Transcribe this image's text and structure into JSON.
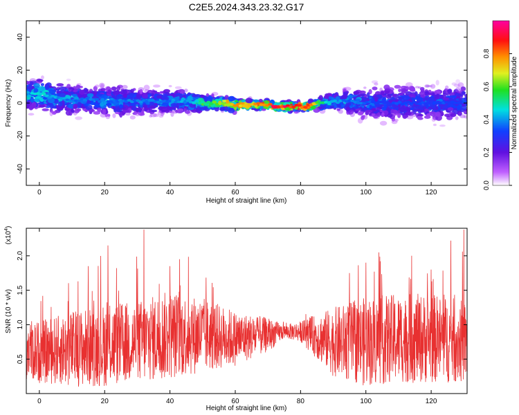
{
  "figure": {
    "title": "C2E5.2024.343.23.32.G17"
  },
  "chart_data": [
    {
      "type": "heatmap",
      "xlabel": "Height of straight line (km)",
      "ylabel": "Frequency (Hz)",
      "xlim": [
        -4,
        131
      ],
      "ylim": [
        -50,
        50
      ],
      "xticks": [
        0,
        20,
        40,
        60,
        80,
        100,
        120
      ],
      "yticks": [
        -40,
        -20,
        0,
        20,
        40
      ],
      "grid": false,
      "colorbar": {
        "label": "Normalized spectral amplitude",
        "range": [
          0.0,
          1.0
        ],
        "ticks": [
          0.0,
          0.2,
          0.4,
          0.6,
          0.8
        ],
        "colormap": "rainbow (white, purple, blue, cyan, green, yellow, red, magenta)"
      },
      "ridge": {
        "x": [
          -3,
          0,
          5,
          10,
          15,
          20,
          25,
          30,
          35,
          40,
          45,
          50,
          55,
          60,
          65,
          70,
          72,
          75,
          78,
          82,
          84,
          86,
          90,
          95,
          100,
          105,
          110,
          115,
          120,
          125,
          130
        ],
        "frequency": [
          5,
          6,
          3,
          2,
          2,
          1,
          1,
          1,
          1,
          1,
          1,
          0,
          0,
          -1,
          -1,
          -1,
          -2,
          -2,
          -2,
          -2,
          -1,
          0,
          1,
          1,
          0,
          0,
          0,
          0,
          0,
          0,
          1
        ],
        "spread_hz": [
          7,
          7,
          7,
          7,
          7,
          7,
          7,
          6,
          6,
          6,
          5,
          4,
          3,
          3,
          2,
          2,
          2,
          2,
          2,
          2,
          2,
          3,
          4,
          6,
          7,
          8,
          8,
          8,
          8,
          8,
          7
        ],
        "peak_amplitude": [
          0.45,
          0.5,
          0.45,
          0.4,
          0.4,
          0.4,
          0.4,
          0.4,
          0.4,
          0.4,
          0.45,
          0.55,
          0.7,
          0.8,
          0.8,
          0.9,
          0.95,
          0.95,
          0.95,
          0.9,
          0.8,
          0.6,
          0.45,
          0.4,
          0.4,
          0.35,
          0.35,
          0.35,
          0.35,
          0.35,
          0.35
        ]
      }
    },
    {
      "type": "line",
      "xlabel": "Height of straight line (km)",
      "ylabel": "SNR (10 * v/v)",
      "y_multiplier": "(x10",
      "y_multiplier_exp": "4",
      "xlim": [
        -4,
        131
      ],
      "ylim": [
        0,
        2.4
      ],
      "xticks": [
        0,
        20,
        40,
        60,
        80,
        100,
        120
      ],
      "yticks": [
        0.5,
        1.0,
        1.5,
        2.0
      ],
      "ytick_labels": [
        "0.5",
        "1.0",
        "1.5",
        "2.0"
      ],
      "grid": false,
      "color": "#e83030",
      "envelope": {
        "x": [
          -4,
          0,
          10,
          20,
          30,
          40,
          50,
          60,
          70,
          75,
          80,
          90,
          100,
          110,
          120,
          131
        ],
        "mean": [
          0.65,
          0.6,
          0.65,
          0.7,
          0.75,
          0.85,
          0.85,
          0.8,
          0.85,
          0.9,
          0.9,
          0.75,
          0.75,
          0.8,
          0.8,
          0.75
        ],
        "amplitude": [
          0.45,
          0.45,
          0.55,
          0.6,
          0.6,
          0.65,
          0.55,
          0.4,
          0.25,
          0.1,
          0.15,
          0.5,
          0.65,
          0.65,
          0.65,
          0.6
        ]
      },
      "spikes": [
        {
          "x": 32,
          "y": 2.38
        },
        {
          "x": 130,
          "y": 2.38
        },
        {
          "x": 126,
          "y": 2.22
        },
        {
          "x": 21,
          "y": 2.15
        },
        {
          "x": 104,
          "y": 2.05
        },
        {
          "x": 114,
          "y": 2.0
        },
        {
          "x": 43,
          "y": 1.95
        },
        {
          "x": 100,
          "y": 1.9
        },
        {
          "x": 40,
          "y": 1.85
        },
        {
          "x": 15,
          "y": 1.85
        },
        {
          "x": 120,
          "y": 1.8
        },
        {
          "x": 95,
          "y": 1.75
        }
      ]
    }
  ]
}
